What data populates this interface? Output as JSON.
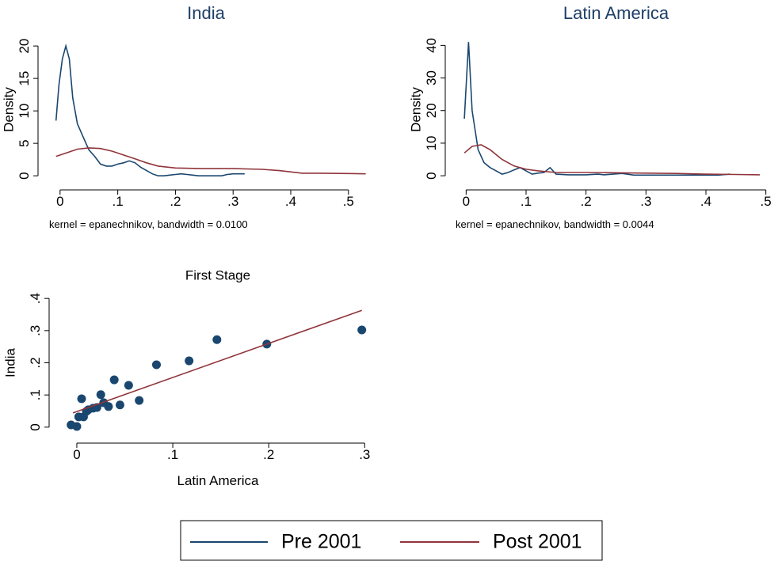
{
  "chart_data": [
    {
      "type": "line",
      "title": "India",
      "ylabel": "Density",
      "note": "kernel = epanechnikov, bandwidth = 0.0100",
      "legend": "bottom",
      "xlim": [
        -0.019,
        0.525
      ],
      "ylim": [
        -1.2,
        21.6
      ],
      "xticks": [
        0,
        {
          "value": 0.1,
          "label": ".1"
        },
        {
          "value": 0.2,
          "label": ".2"
        },
        {
          "value": 0.3,
          "label": ".3"
        },
        {
          "value": 0.4,
          "label": ".4"
        },
        {
          "value": 0.5,
          "label": ".5"
        }
      ],
      "yticks": [
        0,
        5,
        10,
        15,
        20
      ],
      "series": [
        {
          "name": "Pre 2001",
          "color": "#1a476f",
          "x": [
            -0.007,
            -0.002,
            0.004,
            0.01,
            0.016,
            0.022,
            0.03,
            0.04,
            0.05,
            0.06,
            0.07,
            0.08,
            0.09,
            0.1,
            0.11,
            0.12,
            0.13,
            0.14,
            0.15,
            0.16,
            0.17,
            0.18,
            0.19,
            0.2,
            0.21,
            0.22,
            0.23,
            0.24,
            0.26,
            0.28,
            0.29,
            0.3,
            0.32
          ],
          "values": [
            8.5,
            14,
            18,
            20,
            18,
            12,
            8,
            6,
            4,
            3,
            1.8,
            1.5,
            1.5,
            1.8,
            2,
            2.3,
            2,
            1.3,
            0.8,
            0.3,
            0,
            0,
            0.1,
            0.2,
            0.3,
            0.2,
            0.1,
            0,
            0,
            0,
            0.2,
            0.3,
            0.3
          ]
        },
        {
          "name": "Post 2001",
          "color": "#90353b",
          "x": [
            -0.007,
            0.01,
            0.03,
            0.05,
            0.07,
            0.09,
            0.11,
            0.13,
            0.15,
            0.17,
            0.2,
            0.25,
            0.3,
            0.35,
            0.38,
            0.42,
            0.45,
            0.5,
            0.53
          ],
          "values": [
            3,
            3.5,
            4.1,
            4.3,
            4.2,
            3.8,
            3.2,
            2.6,
            2,
            1.5,
            1.2,
            1.1,
            1.1,
            1,
            0.8,
            0.4,
            0.4,
            0.35,
            0.3
          ]
        }
      ]
    },
    {
      "type": "line",
      "title": "Latin America",
      "ylabel": "Density",
      "note": "kernel = epanechnikov, bandwidth = 0.0044",
      "xlim": [
        -0.015,
        0.515
      ],
      "ylim": [
        -2.4,
        43
      ],
      "xticks": [
        0,
        {
          "value": 0.1,
          "label": ".1"
        },
        {
          "value": 0.2,
          "label": ".2"
        },
        {
          "value": 0.3,
          "label": ".3"
        },
        {
          "value": 0.4,
          "label": ".4"
        },
        {
          "value": 0.5,
          "label": ".5"
        }
      ],
      "yticks": [
        0,
        10,
        20,
        30,
        40
      ],
      "series": [
        {
          "color": "#1a476f",
          "x": [
            -0.003,
            0.004,
            0.01,
            0.02,
            0.03,
            0.04,
            0.05,
            0.06,
            0.07,
            0.08,
            0.09,
            0.1,
            0.11,
            0.12,
            0.13,
            0.14,
            0.15,
            0.17,
            0.2,
            0.22,
            0.23,
            0.26,
            0.28,
            0.35,
            0.42,
            0.44
          ],
          "values": [
            17.5,
            41,
            20,
            8,
            4,
            2.5,
            1.5,
            0.5,
            1,
            1.8,
            2.5,
            1.5,
            0.5,
            0.8,
            1,
            2.5,
            0.5,
            0.3,
            0.3,
            0.5,
            0.3,
            0.7,
            0.2,
            0.2,
            0.2,
            0.5
          ]
        },
        {
          "color": "#90353b",
          "x": [
            -0.003,
            0.01,
            0.025,
            0.04,
            0.06,
            0.08,
            0.1,
            0.12,
            0.15,
            0.2,
            0.3,
            0.35,
            0.4,
            0.45,
            0.49
          ],
          "values": [
            7,
            9,
            9.5,
            8,
            5,
            3,
            2,
            1.5,
            1,
            1,
            0.8,
            0.7,
            0.5,
            0.4,
            0.3
          ]
        }
      ]
    },
    {
      "type": "scatter",
      "title": "First Stage",
      "xlabel": "Latin America",
      "ylabel": "India",
      "xlim": [
        -0.014,
        0.308
      ],
      "ylim": [
        -0.025,
        0.425
      ],
      "xticks": [
        0,
        {
          "value": 0.1,
          "label": ".1"
        },
        {
          "value": 0.2,
          "label": ".2"
        },
        {
          "value": 0.3,
          "label": ".3"
        }
      ],
      "yticks": [
        0,
        {
          "value": 0.1,
          "label": ".1"
        },
        {
          "value": 0.2,
          "label": ".2"
        },
        {
          "value": 0.3,
          "label": ".3"
        },
        {
          "value": 0.4,
          "label": ".4"
        }
      ],
      "color": "#1a476f",
      "x": [
        -0.006,
        0.0,
        0.002,
        0.005,
        0.007,
        0.01,
        0.012,
        0.017,
        0.021,
        0.025,
        0.028,
        0.033,
        0.039,
        0.045,
        0.054,
        0.065,
        0.083,
        0.117,
        0.146,
        0.198,
        0.297
      ],
      "values": [
        0.007,
        0.002,
        0.032,
        0.088,
        0.032,
        0.049,
        0.054,
        0.059,
        0.061,
        0.101,
        0.076,
        0.064,
        0.147,
        0.069,
        0.13,
        0.083,
        0.194,
        0.206,
        0.272,
        0.258,
        0.302
      ],
      "fit": {
        "color": "#90353b",
        "x": [
          -0.004,
          0.297
        ],
        "values": [
          0.044,
          0.363
        ]
      }
    }
  ]
}
